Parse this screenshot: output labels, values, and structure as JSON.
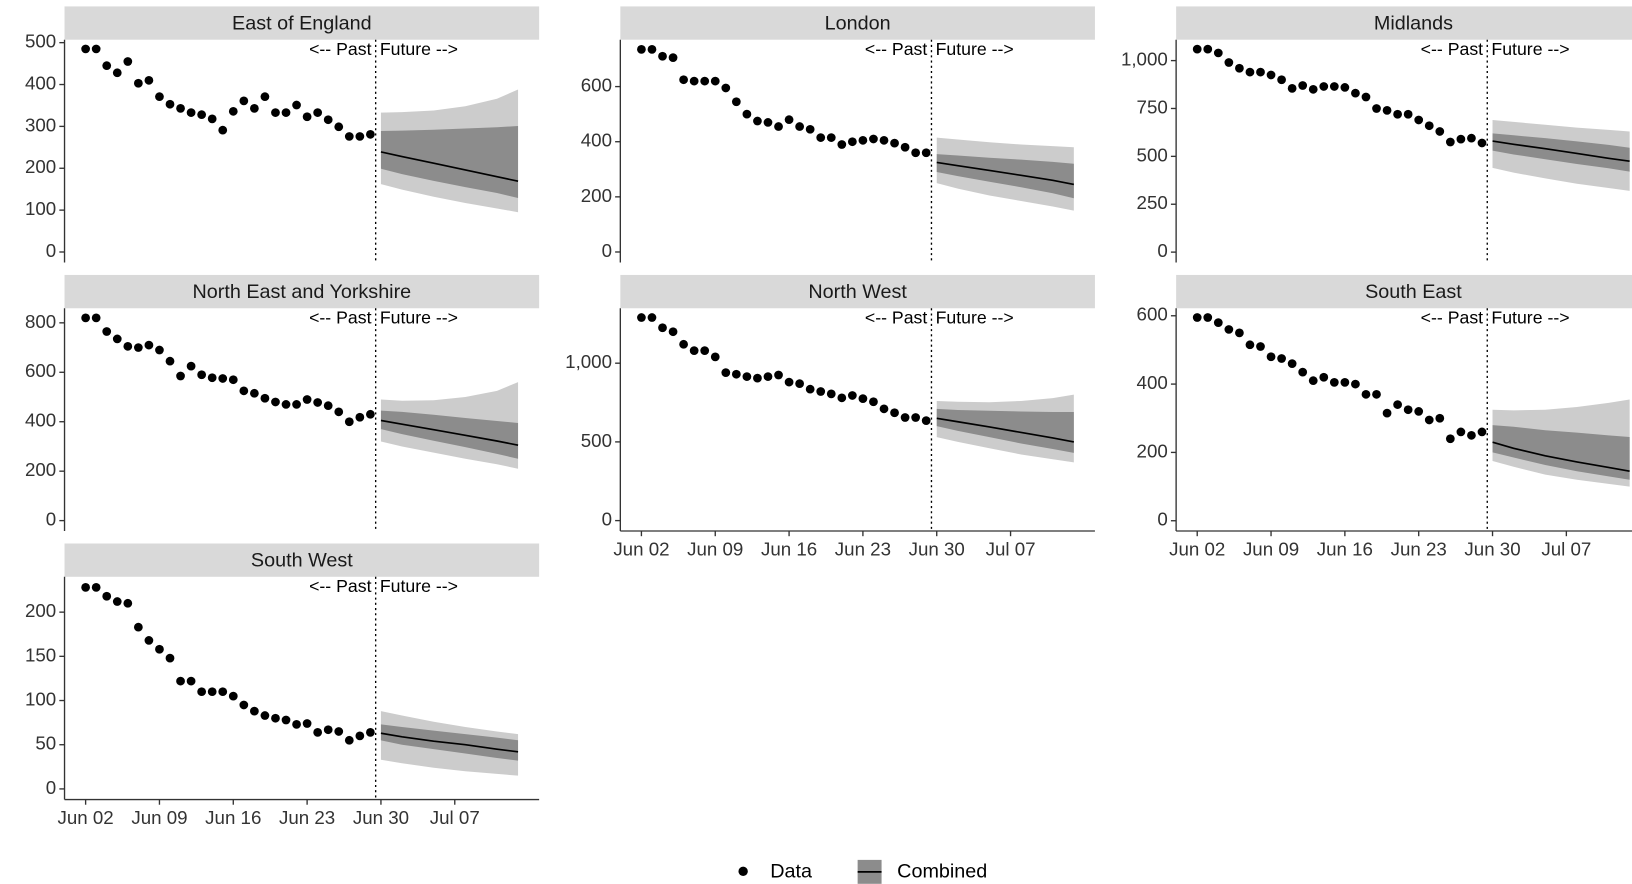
{
  "chart_data": [
    {
      "type": "forecast",
      "title": "East of England",
      "annotations": [
        "<-- Past",
        "Future -->"
      ],
      "x": [
        "Jun 02",
        "Jun 03",
        "Jun 04",
        "Jun 05",
        "Jun 06",
        "Jun 07",
        "Jun 08",
        "Jun 09",
        "Jun 10",
        "Jun 11",
        "Jun 12",
        "Jun 13",
        "Jun 14",
        "Jun 15",
        "Jun 16",
        "Jun 17",
        "Jun 18",
        "Jun 19",
        "Jun 20",
        "Jun 21",
        "Jun 22",
        "Jun 23",
        "Jun 24",
        "Jun 25",
        "Jun 26",
        "Jun 27",
        "Jun 28",
        "Jun 29"
      ],
      "series": [
        {
          "name": "Data",
          "color": "#000000",
          "values": [
            485,
            485,
            445,
            428,
            455,
            403,
            410,
            371,
            353,
            343,
            333,
            328,
            318,
            291,
            336,
            361,
            343,
            371,
            333,
            333,
            351,
            323,
            333,
            316,
            299,
            276,
            276,
            281
          ]
        }
      ],
      "forecast": {
        "name": "Combined",
        "color": "#000000",
        "inner_color": "#8c8c8c",
        "outer_color": "#cccccc",
        "x": [
          "Jun 30",
          "Jul 02",
          "Jul 05",
          "Jul 08",
          "Jul 11",
          "Jul 13"
        ],
        "median": [
          239,
          228,
          212,
          196,
          180,
          169
        ],
        "inner": {
          "lower": [
            199,
            186,
            170,
            155,
            141,
            129
          ],
          "upper": [
            289,
            290,
            292,
            295,
            298,
            301
          ]
        },
        "outer": {
          "lower": [
            162,
            149,
            132,
            117,
            104,
            95
          ],
          "upper": [
            333,
            334,
            338,
            348,
            366,
            388
          ]
        }
      },
      "xlim": [
        "May 31",
        "Jul 15"
      ],
      "ylim": [
        -25,
        507
      ],
      "yticks": [
        0,
        100,
        200,
        300,
        400,
        500
      ]
    },
    {
      "type": "forecast",
      "title": "London",
      "annotations": [
        "<-- Past",
        "Future -->"
      ],
      "x": [
        "Jun 02",
        "Jun 03",
        "Jun 04",
        "Jun 05",
        "Jun 06",
        "Jun 07",
        "Jun 08",
        "Jun 09",
        "Jun 10",
        "Jun 11",
        "Jun 12",
        "Jun 13",
        "Jun 14",
        "Jun 15",
        "Jun 16",
        "Jun 17",
        "Jun 18",
        "Jun 19",
        "Jun 20",
        "Jun 21",
        "Jun 22",
        "Jun 23",
        "Jun 24",
        "Jun 25",
        "Jun 26",
        "Jun 27",
        "Jun 28",
        "Jun 29"
      ],
      "series": [
        {
          "name": "Data",
          "color": "#000000",
          "values": [
            735,
            735,
            710,
            705,
            625,
            620,
            620,
            620,
            595,
            545,
            500,
            475,
            470,
            455,
            480,
            455,
            445,
            415,
            415,
            390,
            400,
            405,
            410,
            405,
            395,
            380,
            360,
            360
          ]
        }
      ],
      "forecast": {
        "name": "Combined",
        "color": "#000000",
        "inner_color": "#8c8c8c",
        "outer_color": "#cccccc",
        "x": [
          "Jun 30",
          "Jul 02",
          "Jul 05",
          "Jul 08",
          "Jul 11",
          "Jul 13"
        ],
        "median": [
          325,
          313,
          296,
          278,
          260,
          245
        ],
        "inner": {
          "lower": [
            290,
            275,
            255,
            235,
            213,
            195
          ],
          "upper": [
            355,
            350,
            342,
            335,
            327,
            320
          ]
        },
        "outer": {
          "lower": [
            250,
            230,
            205,
            185,
            165,
            150
          ],
          "upper": [
            415,
            408,
            398,
            390,
            384,
            380
          ]
        }
      },
      "xlim": [
        "May 31",
        "Jul 15"
      ],
      "ylim": [
        -38,
        770
      ],
      "yticks": [
        0,
        200,
        400,
        600
      ]
    },
    {
      "type": "forecast",
      "title": "Midlands",
      "annotations": [
        "<-- Past",
        "Future -->"
      ],
      "x": [
        "Jun 02",
        "Jun 03",
        "Jun 04",
        "Jun 05",
        "Jun 06",
        "Jun 07",
        "Jun 08",
        "Jun 09",
        "Jun 10",
        "Jun 11",
        "Jun 12",
        "Jun 13",
        "Jun 14",
        "Jun 15",
        "Jun 16",
        "Jun 17",
        "Jun 18",
        "Jun 19",
        "Jun 20",
        "Jun 21",
        "Jun 22",
        "Jun 23",
        "Jun 24",
        "Jun 25",
        "Jun 26",
        "Jun 27",
        "Jun 28",
        "Jun 29"
      ],
      "series": [
        {
          "name": "Data",
          "color": "#000000",
          "values": [
            1060,
            1060,
            1040,
            990,
            960,
            940,
            940,
            925,
            900,
            855,
            870,
            850,
            865,
            865,
            860,
            830,
            810,
            750,
            740,
            720,
            720,
            690,
            660,
            630,
            575,
            590,
            595,
            570
          ]
        }
      ],
      "forecast": {
        "name": "Combined",
        "color": "#000000",
        "inner_color": "#8c8c8c",
        "outer_color": "#cccccc",
        "x": [
          "Jun 30",
          "Jul 02",
          "Jul 05",
          "Jul 08",
          "Jul 11",
          "Jul 13"
        ],
        "median": [
          580,
          563,
          540,
          515,
          490,
          475
        ],
        "inner": {
          "lower": [
            530,
            510,
            485,
            460,
            438,
            420
          ],
          "upper": [
            620,
            610,
            595,
            578,
            560,
            545
          ]
        },
        "outer": {
          "lower": [
            440,
            415,
            385,
            357,
            335,
            320
          ],
          "upper": [
            690,
            680,
            665,
            650,
            638,
            630
          ]
        }
      },
      "xlim": [
        "May 31",
        "Jul 15"
      ],
      "ylim": [
        -54,
        1109
      ],
      "yticks": [
        0,
        250,
        500,
        750,
        {
          "value": 1000,
          "label": "1,000"
        }
      ]
    },
    {
      "type": "forecast",
      "title": "North East and Yorkshire",
      "annotations": [
        "<-- Past",
        "Future -->"
      ],
      "x": [
        "Jun 02",
        "Jun 03",
        "Jun 04",
        "Jun 05",
        "Jun 06",
        "Jun 07",
        "Jun 08",
        "Jun 09",
        "Jun 10",
        "Jun 11",
        "Jun 12",
        "Jun 13",
        "Jun 14",
        "Jun 15",
        "Jun 16",
        "Jun 17",
        "Jun 18",
        "Jun 19",
        "Jun 20",
        "Jun 21",
        "Jun 22",
        "Jun 23",
        "Jun 24",
        "Jun 25",
        "Jun 26",
        "Jun 27",
        "Jun 28",
        "Jun 29"
      ],
      "series": [
        {
          "name": "Data",
          "color": "#000000",
          "values": [
            820,
            820,
            765,
            735,
            705,
            700,
            710,
            690,
            645,
            585,
            625,
            590,
            578,
            575,
            570,
            525,
            515,
            495,
            480,
            470,
            470,
            490,
            478,
            465,
            440,
            400,
            418,
            430
          ]
        }
      ],
      "forecast": {
        "name": "Combined",
        "color": "#000000",
        "inner_color": "#8c8c8c",
        "outer_color": "#cccccc",
        "x": [
          "Jun 30",
          "Jul 02",
          "Jul 05",
          "Jul 08",
          "Jul 11",
          "Jul 13"
        ],
        "median": [
          405,
          390,
          368,
          345,
          322,
          305
        ],
        "inner": {
          "lower": [
            370,
            350,
            323,
            297,
            270,
            250
          ],
          "upper": [
            445,
            440,
            428,
            415,
            403,
            395
          ]
        },
        "outer": {
          "lower": [
            320,
            300,
            275,
            250,
            228,
            210
          ],
          "upper": [
            490,
            485,
            487,
            500,
            525,
            560
          ]
        }
      },
      "xlim": [
        "May 31",
        "Jul 15"
      ],
      "ylim": [
        -42,
        859
      ],
      "yticks": [
        0,
        200,
        400,
        600,
        800
      ]
    },
    {
      "type": "forecast",
      "title": "North West",
      "annotations": [
        "<-- Past",
        "Future -->"
      ],
      "x": [
        "Jun 02",
        "Jun 03",
        "Jun 04",
        "Jun 05",
        "Jun 06",
        "Jun 07",
        "Jun 08",
        "Jun 09",
        "Jun 10",
        "Jun 11",
        "Jun 12",
        "Jun 13",
        "Jun 14",
        "Jun 15",
        "Jun 16",
        "Jun 17",
        "Jun 18",
        "Jun 19",
        "Jun 20",
        "Jun 21",
        "Jun 22",
        "Jun 23",
        "Jun 24",
        "Jun 25",
        "Jun 26",
        "Jun 27",
        "Jun 28",
        "Jun 29"
      ],
      "series": [
        {
          "name": "Data",
          "color": "#000000",
          "values": [
            1290,
            1290,
            1225,
            1200,
            1120,
            1080,
            1080,
            1040,
            940,
            930,
            915,
            905,
            915,
            925,
            880,
            870,
            835,
            820,
            805,
            780,
            795,
            775,
            755,
            710,
            685,
            655,
            655,
            635
          ]
        }
      ],
      "forecast": {
        "name": "Combined",
        "color": "#000000",
        "inner_color": "#8c8c8c",
        "outer_color": "#cccccc",
        "x": [
          "Jun 30",
          "Jul 02",
          "Jul 05",
          "Jul 08",
          "Jul 11",
          "Jul 13"
        ],
        "median": [
          650,
          628,
          595,
          560,
          525,
          500
        ],
        "inner": {
          "lower": [
            600,
            570,
            530,
            490,
            455,
            430
          ],
          "upper": [
            710,
            703,
            698,
            693,
            690,
            690
          ]
        },
        "outer": {
          "lower": [
            530,
            500,
            460,
            420,
            390,
            370
          ],
          "upper": [
            760,
            755,
            752,
            760,
            778,
            800
          ]
        }
      },
      "xlim": [
        "May 31",
        "Jul 15"
      ],
      "ylim": [
        -66,
        1349
      ],
      "yticks": [
        0,
        500,
        {
          "value": 1000,
          "label": "1,000"
        }
      ],
      "xticks": [
        "Jun 02",
        "Jun 09",
        "Jun 16",
        "Jun 23",
        "Jun 30",
        "Jul 07"
      ]
    },
    {
      "type": "forecast",
      "title": "South East",
      "annotations": [
        "<-- Past",
        "Future -->"
      ],
      "x": [
        "Jun 02",
        "Jun 03",
        "Jun 04",
        "Jun 05",
        "Jun 06",
        "Jun 07",
        "Jun 08",
        "Jun 09",
        "Jun 10",
        "Jun 11",
        "Jun 12",
        "Jun 13",
        "Jun 14",
        "Jun 15",
        "Jun 16",
        "Jun 17",
        "Jun 18",
        "Jun 19",
        "Jun 20",
        "Jun 21",
        "Jun 22",
        "Jun 23",
        "Jun 24",
        "Jun 25",
        "Jun 26",
        "Jun 27",
        "Jun 28",
        "Jun 29"
      ],
      "series": [
        {
          "name": "Data",
          "color": "#000000",
          "values": [
            595,
            595,
            580,
            560,
            550,
            515,
            510,
            480,
            475,
            460,
            435,
            410,
            420,
            405,
            405,
            400,
            370,
            370,
            315,
            340,
            325,
            320,
            295,
            300,
            240,
            260,
            250,
            260
          ]
        }
      ],
      "forecast": {
        "name": "Combined",
        "color": "#000000",
        "inner_color": "#8c8c8c",
        "outer_color": "#cccccc",
        "x": [
          "Jun 30",
          "Jul 02",
          "Jul 05",
          "Jul 08",
          "Jul 11",
          "Jul 13"
        ],
        "median": [
          230,
          212,
          190,
          172,
          156,
          145
        ],
        "inner": {
          "lower": [
            200,
            185,
            163,
            145,
            130,
            120
          ],
          "upper": [
            280,
            275,
            265,
            258,
            250,
            245
          ]
        },
        "outer": {
          "lower": [
            175,
            158,
            135,
            120,
            108,
            100
          ],
          "upper": [
            325,
            323,
            325,
            333,
            345,
            355
          ]
        }
      },
      "xlim": [
        "May 31",
        "Jul 15"
      ],
      "ylim": [
        -30,
        622
      ],
      "yticks": [
        0,
        200,
        400,
        600
      ],
      "xticks": [
        "Jun 02",
        "Jun 09",
        "Jun 16",
        "Jun 23",
        "Jun 30",
        "Jul 07"
      ]
    },
    {
      "type": "forecast",
      "title": "South West",
      "annotations": [
        "<-- Past",
        "Future -->"
      ],
      "x": [
        "Jun 02",
        "Jun 03",
        "Jun 04",
        "Jun 05",
        "Jun 06",
        "Jun 07",
        "Jun 08",
        "Jun 09",
        "Jun 10",
        "Jun 11",
        "Jun 12",
        "Jun 13",
        "Jun 14",
        "Jun 15",
        "Jun 16",
        "Jun 17",
        "Jun 18",
        "Jun 19",
        "Jun 20",
        "Jun 21",
        "Jun 22",
        "Jun 23",
        "Jun 24",
        "Jun 25",
        "Jun 26",
        "Jun 27",
        "Jun 28",
        "Jun 29"
      ],
      "series": [
        {
          "name": "Data",
          "color": "#000000",
          "values": [
            228,
            228,
            218,
            212,
            210,
            183,
            168,
            158,
            148,
            122,
            122,
            110,
            110,
            110,
            105,
            95,
            88,
            83,
            80,
            78,
            73,
            74,
            64,
            67,
            65,
            55,
            60,
            64
          ]
        }
      ],
      "forecast": {
        "name": "Combined",
        "color": "#000000",
        "inner_color": "#8c8c8c",
        "outer_color": "#cccccc",
        "x": [
          "Jun 30",
          "Jul 02",
          "Jul 05",
          "Jul 08",
          "Jul 11",
          "Jul 13"
        ],
        "median": [
          63,
          59,
          54,
          50,
          45,
          42
        ],
        "inner": {
          "lower": [
            55,
            50,
            45,
            40,
            35,
            32
          ],
          "upper": [
            73,
            70,
            66,
            62,
            58,
            55
          ]
        },
        "outer": {
          "lower": [
            33,
            29,
            24,
            20,
            17,
            15
          ],
          "upper": [
            88,
            83,
            76,
            70,
            65,
            62
          ]
        }
      },
      "xlim": [
        "May 31",
        "Jul 15"
      ],
      "ylim": [
        -12,
        240
      ],
      "yticks": [
        0,
        50,
        100,
        150,
        200
      ],
      "xticks": [
        "Jun 02",
        "Jun 09",
        "Jun 16",
        "Jun 23",
        "Jun 30",
        "Jul 07"
      ]
    }
  ]
}
